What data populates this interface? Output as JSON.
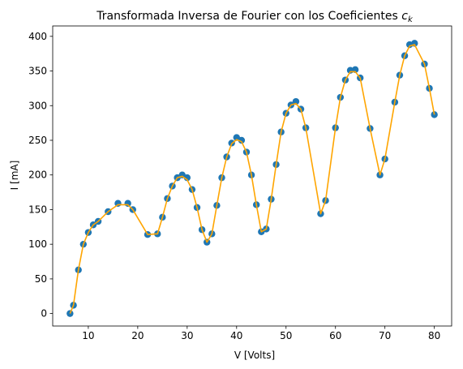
{
  "chart_data": {
    "type": "scatter",
    "title": "Transformada Inversa de Fourier con los Coeficientes",
    "title_math_base": "c",
    "title_math_sub": "k",
    "xlabel": "V [Volts]",
    "ylabel": "I [mA]",
    "xlim": [
      2.8,
      83.5
    ],
    "ylim": [
      -18,
      415
    ],
    "xticks": [
      10,
      20,
      30,
      40,
      50,
      60,
      70,
      80
    ],
    "yticks": [
      0,
      50,
      100,
      150,
      200,
      250,
      300,
      350,
      400
    ],
    "grid": false,
    "colors": {
      "points": "#1f77b4",
      "line": "#ffa500",
      "axes": "#000000"
    },
    "series": [
      {
        "kind": "points",
        "x": [
          6.3,
          7.0,
          8.0,
          9.0,
          10.0,
          11.0,
          12.0,
          14.0,
          16.0,
          18.0,
          19.0,
          22.0,
          24.0,
          25.0,
          26.0,
          27.0,
          28.0,
          29.0,
          30.0,
          31.0,
          32.0,
          33.0,
          34.0,
          35.0,
          36.0,
          37.0,
          38.0,
          39.0,
          40.0,
          41.0,
          42.0,
          43.0,
          44.0,
          45.0,
          46.0,
          47.0,
          48.0,
          49.0,
          50.0,
          51.0,
          52.0,
          53.0,
          54.0,
          57.0,
          58.0,
          60.0,
          61.0,
          62.0,
          63.0,
          64.0,
          65.0,
          67.0,
          69.0,
          70.0,
          72.0,
          73.0,
          74.0,
          75.0,
          76.0,
          78.0,
          79.0,
          80.0
        ],
        "y": [
          0,
          12,
          63,
          100,
          117,
          128,
          133,
          147,
          159,
          159,
          150,
          114,
          115,
          139,
          166,
          184,
          196,
          200,
          196,
          179,
          153,
          121,
          103,
          115,
          156,
          196,
          226,
          246,
          254,
          250,
          233,
          200,
          157,
          118,
          122,
          165,
          215,
          262,
          289,
          301,
          306,
          295,
          268,
          144,
          163,
          268,
          312,
          337,
          351,
          352,
          340,
          267,
          200,
          223,
          305,
          344,
          372,
          388,
          390,
          360,
          325,
          287
        ]
      },
      {
        "kind": "line",
        "x": [
          6.3,
          7.0,
          8.0,
          9.0,
          10.0,
          11.0,
          12.0,
          14.0,
          16.0,
          18.0,
          19.0,
          22.0,
          24.0,
          25.0,
          26.0,
          27.0,
          28.0,
          29.0,
          30.0,
          31.0,
          32.0,
          33.0,
          34.0,
          35.0,
          36.0,
          37.0,
          38.0,
          39.0,
          40.0,
          41.0,
          42.0,
          43.0,
          44.0,
          45.0,
          46.0,
          47.0,
          48.0,
          49.0,
          50.0,
          51.0,
          52.0,
          53.0,
          54.0,
          57.0,
          58.0,
          60.0,
          61.0,
          62.0,
          63.0,
          64.0,
          65.0,
          67.0,
          69.0,
          70.0,
          72.0,
          73.0,
          74.0,
          75.0,
          76.0,
          78.0,
          79.0,
          80.0
        ],
        "y": [
          0,
          12,
          63,
          100,
          117,
          128,
          133,
          147,
          157,
          157,
          150,
          114,
          115,
          139,
          166,
          184,
          196,
          198,
          193,
          179,
          153,
          121,
          103,
          115,
          156,
          196,
          226,
          245,
          251,
          248,
          233,
          200,
          157,
          118,
          122,
          165,
          215,
          262,
          289,
          301,
          303,
          295,
          268,
          144,
          163,
          268,
          312,
          337,
          349,
          349,
          340,
          267,
          200,
          223,
          305,
          344,
          372,
          386,
          388,
          360,
          325,
          287
        ]
      }
    ]
  }
}
